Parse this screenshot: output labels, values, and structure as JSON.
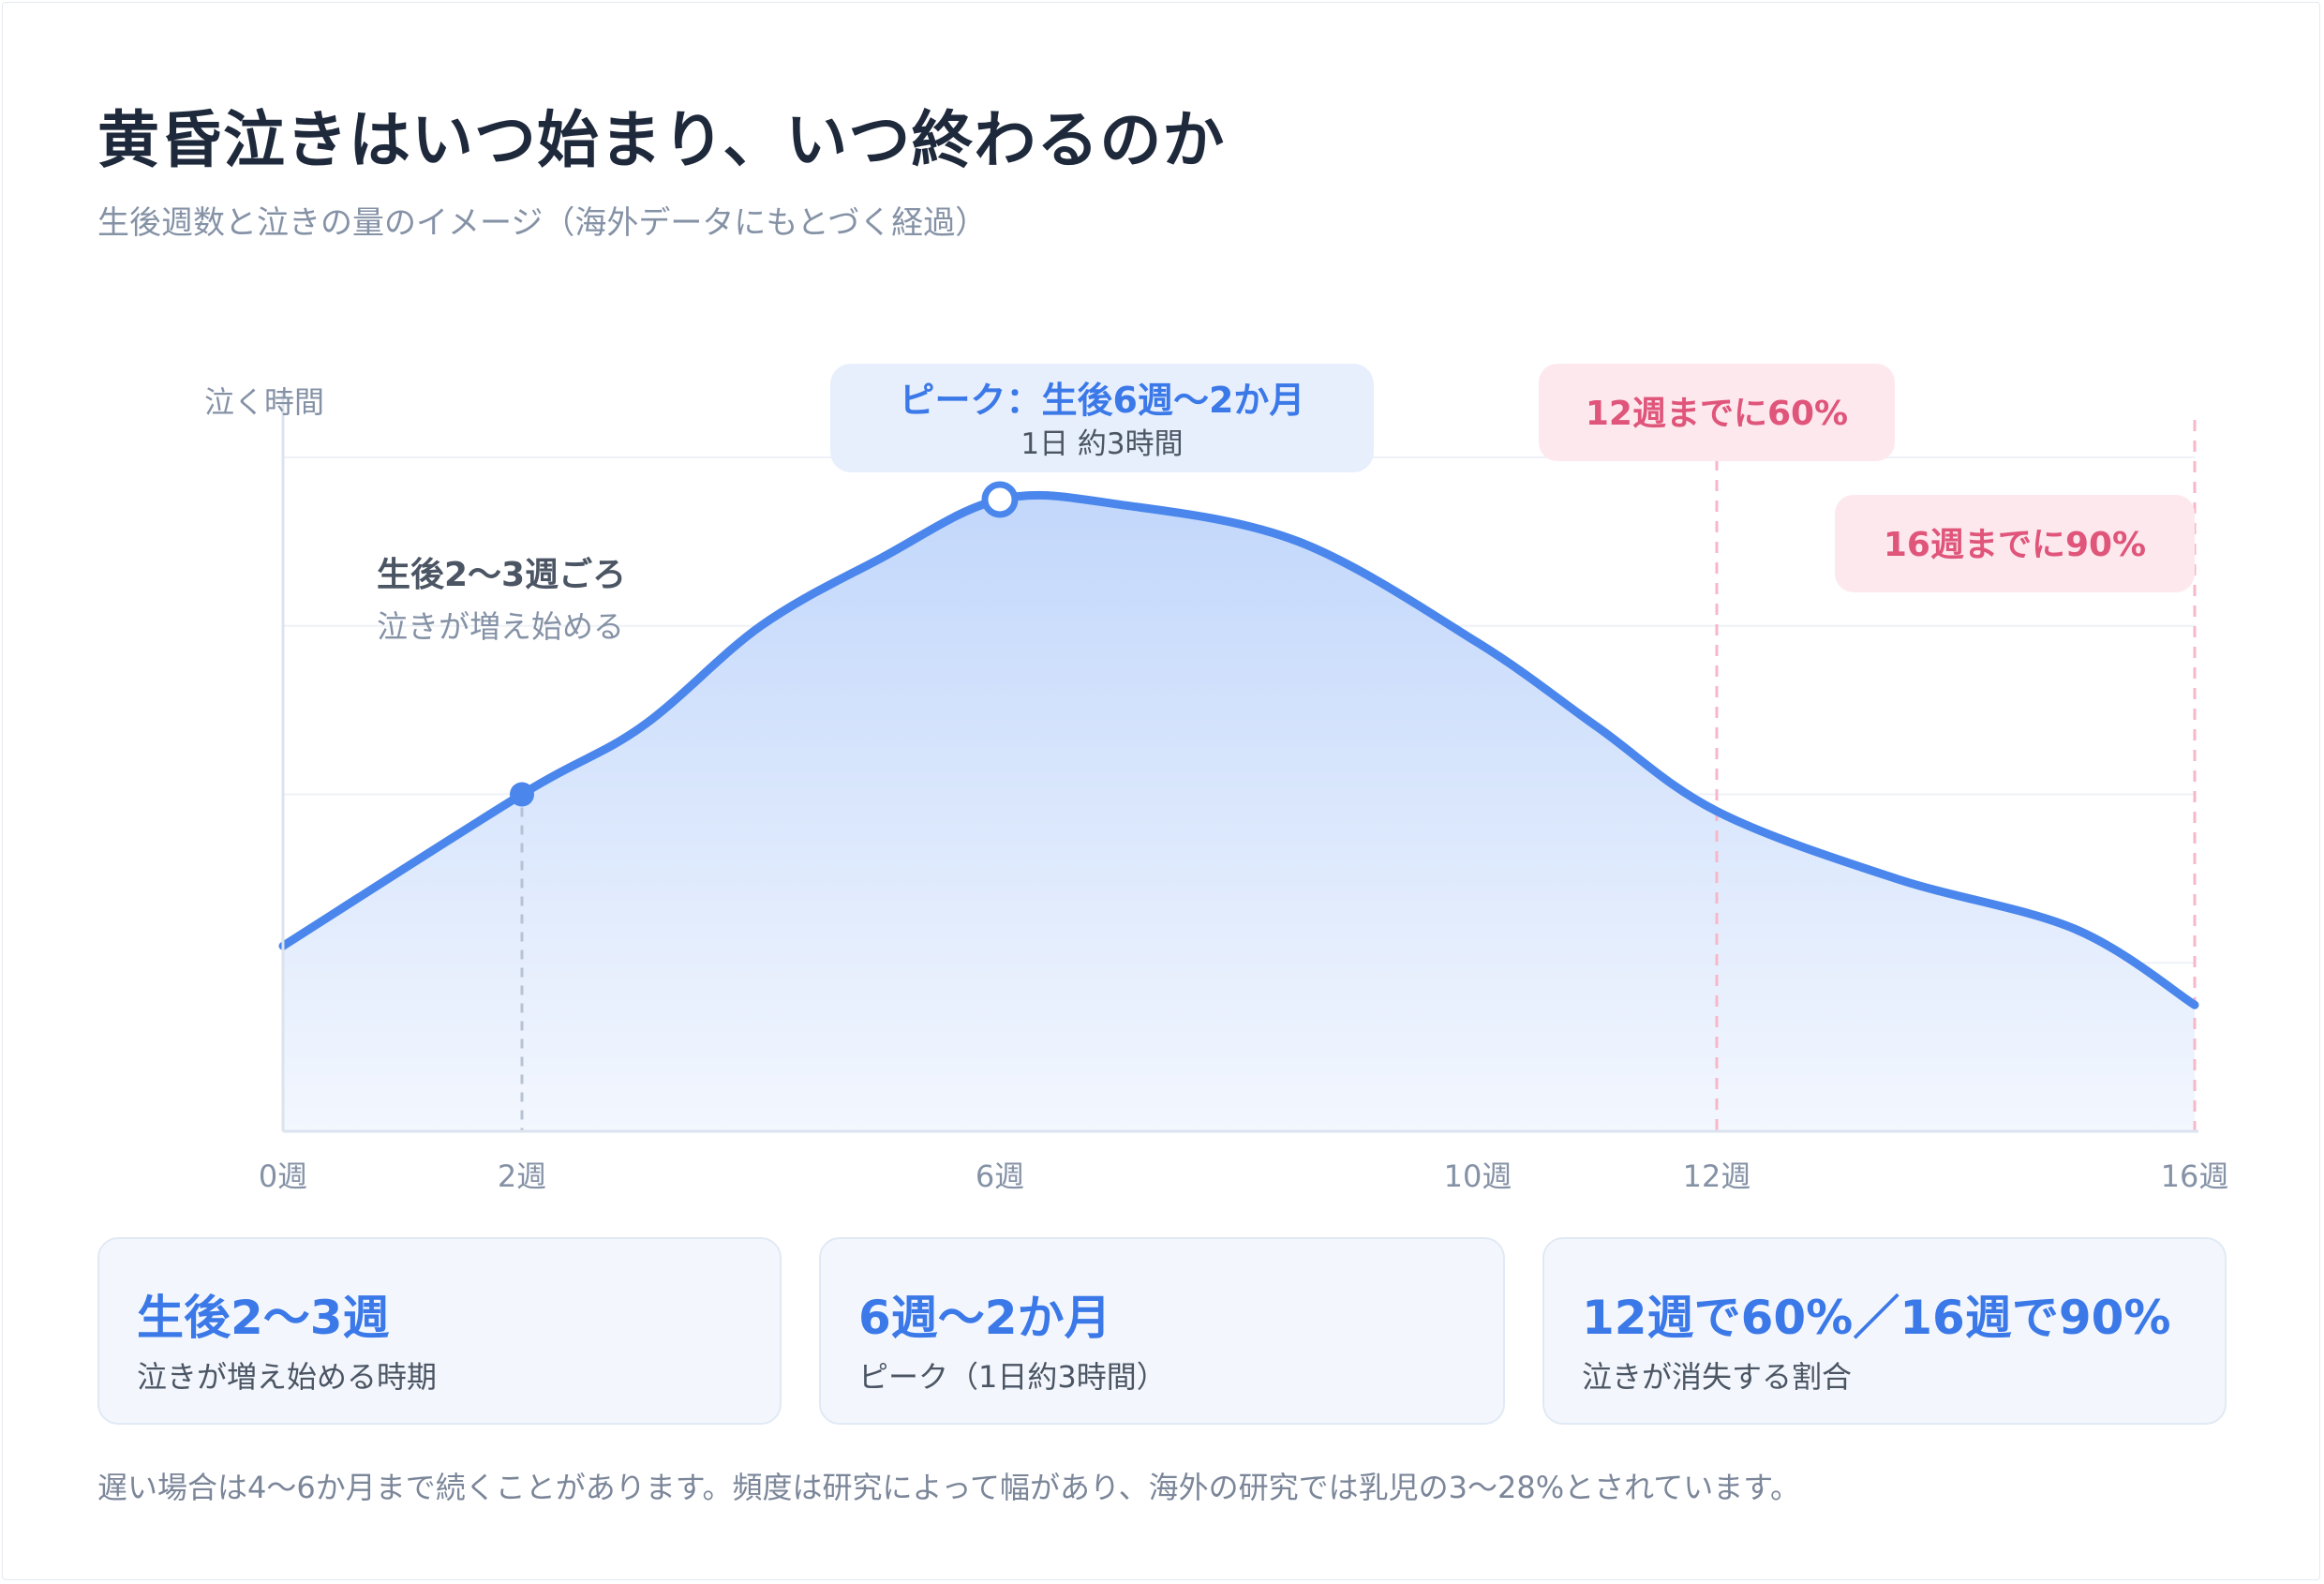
{
  "header": {
    "title": "黄昏泣きはいつ始まり、いつ終わるのか",
    "subtitle": "生後週数と泣きの量のイメージ（海外データにもとづく経過）"
  },
  "chart_data": {
    "type": "area",
    "ylabel": "泣く時間",
    "xlabel": "",
    "x_ticks": [
      {
        "value": 0,
        "label": "0週"
      },
      {
        "value": 2,
        "label": "2週"
      },
      {
        "value": 6,
        "label": "6週"
      },
      {
        "value": 10,
        "label": "10週"
      },
      {
        "value": 12,
        "label": "12週"
      },
      {
        "value": 16,
        "label": "16週"
      }
    ],
    "xlim": [
      0,
      16
    ],
    "ylim": [
      0,
      4
    ],
    "grid": true,
    "series": [
      {
        "points": [
          {
            "x": 0,
            "y": 1.1
          },
          {
            "x": 2,
            "y": 2.0
          },
          {
            "x": 3,
            "y": 2.4
          },
          {
            "x": 4,
            "y": 3.0
          },
          {
            "x": 5,
            "y": 3.4
          },
          {
            "x": 6,
            "y": 3.75
          },
          {
            "x": 7,
            "y": 3.72
          },
          {
            "x": 8.5,
            "y": 3.5
          },
          {
            "x": 10,
            "y": 2.9
          },
          {
            "x": 11,
            "y": 2.4
          },
          {
            "x": 12,
            "y": 1.9
          },
          {
            "x": 13.5,
            "y": 1.5
          },
          {
            "x": 15,
            "y": 1.2
          },
          {
            "x": 16,
            "y": 0.75
          }
        ]
      }
    ],
    "colors": {
      "line": "#4a86ec",
      "fill": "#c7dafb",
      "marker": "#4a86ec",
      "pink": "#f7b7c8"
    },
    "annotations": {
      "onset": {
        "x": 2,
        "y": 2.0,
        "title": "生後2〜3週ごろ",
        "text": "泣きが増え始める"
      },
      "peak": {
        "x": 6,
        "y": 3.75,
        "title": "ピーク：生後6週〜2か月",
        "text": "1日 約3時間"
      },
      "marker12": {
        "x": 12,
        "label": "12週までに60%"
      },
      "marker16": {
        "x": 16,
        "label": "16週までに90%"
      }
    }
  },
  "cards": [
    {
      "value": "生後2〜3週",
      "label": "泣きが増え始める時期"
    },
    {
      "value": "6週〜2か月",
      "label": "ピーク（1日約3時間）"
    },
    {
      "value": "12週で60%／16週で90%",
      "label": "泣きが消失する割合"
    }
  ],
  "footnote": "遅い場合は4〜6か月まで続くことがあります。頻度は研究によって幅があり、海外の研究では乳児の3〜28%とされています。"
}
